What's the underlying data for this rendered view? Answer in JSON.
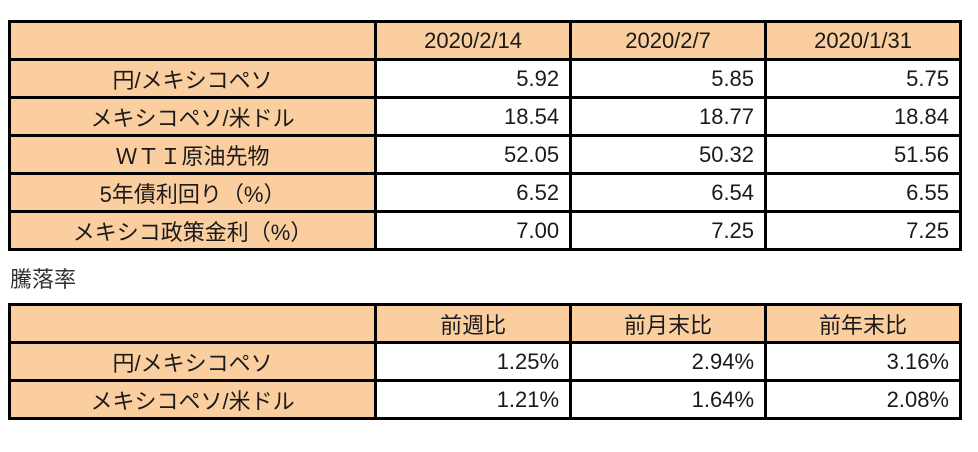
{
  "chart_data": [
    {
      "type": "table",
      "title": "",
      "columns": [
        "",
        "2020/2/14",
        "2020/2/7",
        "2020/1/31"
      ],
      "rows": [
        {
          "label": "円/メキシコペソ",
          "values": [
            "5.92",
            "5.85",
            "5.75"
          ]
        },
        {
          "label": "メキシコペソ/米ドル",
          "values": [
            "18.54",
            "18.77",
            "18.84"
          ]
        },
        {
          "label": "ＷＴＩ原油先物",
          "values": [
            "52.05",
            "50.32",
            "51.56"
          ]
        },
        {
          "label": "5年債利回り（%）",
          "values": [
            "6.52",
            "6.54",
            "6.55"
          ]
        },
        {
          "label": "メキシコ政策金利（%）",
          "values": [
            "7.00",
            "7.25",
            "7.25"
          ]
        }
      ]
    },
    {
      "type": "table",
      "title": "騰落率",
      "columns": [
        "",
        "前週比",
        "前月末比",
        "前年末比"
      ],
      "rows": [
        {
          "label": "円/メキシコペソ",
          "values": [
            "1.25%",
            "2.94%",
            "3.16%"
          ]
        },
        {
          "label": "メキシコペソ/米ドル",
          "values": [
            "1.21%",
            "1.64%",
            "2.08%"
          ]
        }
      ]
    }
  ],
  "section_label": "騰落率",
  "colors": {
    "header_bg": "#fbcea0",
    "border": "#000000",
    "text": "#1a1a1a"
  }
}
